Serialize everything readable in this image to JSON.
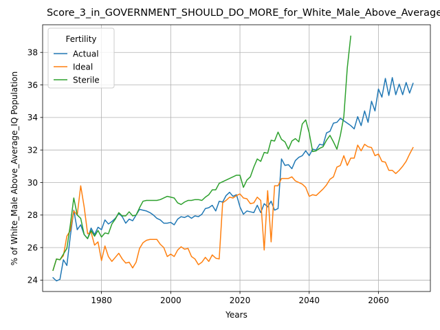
{
  "chart_data": {
    "type": "line",
    "title": "Score_3_in_GOVERNMENT_SHOULD_DO_MORE_for_White_Male_Above_Average_IQ",
    "xlabel": "Years",
    "ylabel": "% of White_Male Above_Average_IQ Population",
    "xlim": [
      1963,
      2075
    ],
    "ylim": [
      23.3,
      39.7
    ],
    "xticks": [
      1980,
      2000,
      2020,
      2040,
      2060
    ],
    "yticks": [
      24,
      26,
      28,
      30,
      32,
      34,
      36,
      38
    ],
    "grid": true,
    "legend": {
      "title": "Fertility",
      "placement": "top-left"
    },
    "series": [
      {
        "name": "Actual",
        "color": "#1f77b4",
        "points": [
          [
            1966,
            24.15
          ],
          [
            1967,
            23.95
          ],
          [
            1968,
            24.05
          ],
          [
            1969,
            25.25
          ],
          [
            1970,
            24.9
          ],
          [
            1971,
            26.7
          ],
          [
            1972,
            28.3
          ],
          [
            1973,
            27.1
          ],
          [
            1974,
            27.4
          ],
          [
            1975,
            26.8
          ],
          [
            1976,
            26.55
          ],
          [
            1977,
            27.2
          ],
          [
            1978,
            26.8
          ],
          [
            1979,
            27.25
          ],
          [
            1980,
            27.1
          ],
          [
            1981,
            27.7
          ],
          [
            1982,
            27.45
          ],
          [
            1983,
            27.6
          ],
          [
            1984,
            27.8
          ],
          [
            1985,
            28.1
          ],
          [
            1986,
            27.9
          ],
          [
            1987,
            27.5
          ],
          [
            1988,
            27.75
          ],
          [
            1989,
            27.65
          ],
          [
            1990,
            28.0
          ],
          [
            1991,
            28.35
          ],
          [
            1992,
            28.3
          ],
          [
            1993,
            28.25
          ],
          [
            1994,
            28.15
          ],
          [
            1995,
            28.0
          ],
          [
            1996,
            27.8
          ],
          [
            1997,
            27.7
          ],
          [
            1998,
            27.5
          ],
          [
            1999,
            27.5
          ],
          [
            2000,
            27.55
          ],
          [
            2001,
            27.4
          ],
          [
            2002,
            27.75
          ],
          [
            2003,
            27.9
          ],
          [
            2004,
            27.85
          ],
          [
            2005,
            27.95
          ],
          [
            2006,
            27.8
          ],
          [
            2007,
            27.95
          ],
          [
            2008,
            27.9
          ],
          [
            2009,
            28.05
          ],
          [
            2010,
            28.4
          ],
          [
            2011,
            28.45
          ],
          [
            2012,
            28.6
          ],
          [
            2013,
            28.25
          ],
          [
            2014,
            28.85
          ],
          [
            2015,
            28.8
          ],
          [
            2016,
            29.2
          ],
          [
            2017,
            29.4
          ],
          [
            2018,
            29.15
          ],
          [
            2019,
            29.25
          ],
          [
            2020,
            28.5
          ],
          [
            2021,
            28.05
          ],
          [
            2022,
            28.25
          ],
          [
            2023,
            28.2
          ],
          [
            2024,
            28.15
          ],
          [
            2025,
            28.6
          ],
          [
            2026,
            28.15
          ],
          [
            2027,
            28.7
          ],
          [
            2028,
            28.5
          ],
          [
            2029,
            28.85
          ],
          [
            2030,
            28.3
          ],
          [
            2031,
            28.4
          ],
          [
            2032,
            31.45
          ],
          [
            2033,
            31.05
          ],
          [
            2034,
            31.1
          ],
          [
            2035,
            30.85
          ],
          [
            2036,
            31.35
          ],
          [
            2037,
            31.55
          ],
          [
            2038,
            31.65
          ],
          [
            2039,
            31.95
          ],
          [
            2040,
            31.65
          ],
          [
            2041,
            32.05
          ],
          [
            2042,
            32.0
          ],
          [
            2043,
            32.35
          ],
          [
            2044,
            32.3
          ],
          [
            2045,
            33.05
          ],
          [
            2046,
            33.15
          ],
          [
            2047,
            33.65
          ],
          [
            2048,
            33.7
          ],
          [
            2049,
            33.95
          ],
          [
            2050,
            33.8
          ],
          [
            2051,
            33.65
          ],
          [
            2052,
            33.5
          ],
          [
            2053,
            33.3
          ],
          [
            2054,
            34.05
          ],
          [
            2055,
            33.5
          ],
          [
            2056,
            34.4
          ],
          [
            2057,
            33.7
          ],
          [
            2058,
            35.0
          ],
          [
            2059,
            34.4
          ],
          [
            2060,
            35.75
          ],
          [
            2061,
            35.25
          ],
          [
            2062,
            36.4
          ],
          [
            2063,
            35.35
          ],
          [
            2064,
            36.45
          ],
          [
            2065,
            35.4
          ],
          [
            2066,
            36.05
          ],
          [
            2067,
            35.4
          ],
          [
            2068,
            36.15
          ],
          [
            2069,
            35.5
          ],
          [
            2070,
            36.1
          ]
        ]
      },
      {
        "name": "Ideal",
        "color": "#ff7f0e",
        "points": [
          [
            1966,
            24.6
          ],
          [
            1967,
            25.3
          ],
          [
            1968,
            25.25
          ],
          [
            1969,
            25.5
          ],
          [
            1970,
            26.7
          ],
          [
            1971,
            27.05
          ],
          [
            1972,
            28.25
          ],
          [
            1973,
            28.0
          ],
          [
            1974,
            29.8
          ],
          [
            1975,
            28.5
          ],
          [
            1976,
            26.85
          ],
          [
            1977,
            26.95
          ],
          [
            1978,
            26.15
          ],
          [
            1979,
            26.35
          ],
          [
            1980,
            25.2
          ],
          [
            1981,
            26.1
          ],
          [
            1982,
            25.45
          ],
          [
            1983,
            25.15
          ],
          [
            1984,
            25.4
          ],
          [
            1985,
            25.65
          ],
          [
            1986,
            25.3
          ],
          [
            1987,
            25.05
          ],
          [
            1988,
            25.1
          ],
          [
            1989,
            24.75
          ],
          [
            1990,
            25.1
          ],
          [
            1991,
            25.95
          ],
          [
            1992,
            26.3
          ],
          [
            1993,
            26.45
          ],
          [
            1994,
            26.5
          ],
          [
            1995,
            26.5
          ],
          [
            1996,
            26.5
          ],
          [
            1997,
            26.2
          ],
          [
            1998,
            26.0
          ],
          [
            1999,
            25.45
          ],
          [
            2000,
            25.6
          ],
          [
            2001,
            25.45
          ],
          [
            2002,
            25.85
          ],
          [
            2003,
            26.05
          ],
          [
            2004,
            25.9
          ],
          [
            2005,
            25.95
          ],
          [
            2006,
            25.45
          ],
          [
            2007,
            25.3
          ],
          [
            2008,
            24.95
          ],
          [
            2009,
            25.1
          ],
          [
            2010,
            25.4
          ],
          [
            2011,
            25.15
          ],
          [
            2012,
            25.55
          ],
          [
            2013,
            25.35
          ],
          [
            2014,
            25.3
          ],
          [
            2015,
            28.75
          ],
          [
            2016,
            28.9
          ],
          [
            2017,
            29.1
          ],
          [
            2018,
            29.05
          ],
          [
            2019,
            29.2
          ],
          [
            2020,
            29.3
          ],
          [
            2021,
            29.05
          ],
          [
            2022,
            29.0
          ],
          [
            2023,
            28.7
          ],
          [
            2024,
            28.75
          ],
          [
            2025,
            29.1
          ],
          [
            2026,
            28.9
          ],
          [
            2027,
            25.85
          ],
          [
            2028,
            29.5
          ],
          [
            2029,
            26.35
          ],
          [
            2030,
            29.8
          ],
          [
            2031,
            29.8
          ],
          [
            2032,
            30.25
          ],
          [
            2033,
            30.25
          ],
          [
            2034,
            30.25
          ],
          [
            2035,
            30.35
          ],
          [
            2036,
            30.1
          ],
          [
            2037,
            30.0
          ],
          [
            2038,
            29.9
          ],
          [
            2039,
            29.7
          ],
          [
            2040,
            29.15
          ],
          [
            2041,
            29.25
          ],
          [
            2042,
            29.2
          ],
          [
            2043,
            29.4
          ],
          [
            2044,
            29.6
          ],
          [
            2045,
            29.85
          ],
          [
            2046,
            30.2
          ],
          [
            2047,
            30.35
          ],
          [
            2048,
            30.95
          ],
          [
            2049,
            31.05
          ],
          [
            2050,
            31.65
          ],
          [
            2051,
            31.05
          ],
          [
            2052,
            31.5
          ],
          [
            2053,
            31.5
          ],
          [
            2054,
            32.3
          ],
          [
            2055,
            31.95
          ],
          [
            2056,
            32.35
          ],
          [
            2057,
            32.2
          ],
          [
            2058,
            32.15
          ],
          [
            2059,
            31.65
          ],
          [
            2060,
            31.75
          ],
          [
            2061,
            31.3
          ],
          [
            2062,
            31.25
          ],
          [
            2063,
            30.75
          ],
          [
            2064,
            30.75
          ],
          [
            2065,
            30.55
          ],
          [
            2066,
            30.75
          ],
          [
            2067,
            31.0
          ],
          [
            2068,
            31.3
          ],
          [
            2069,
            31.75
          ],
          [
            2070,
            32.15
          ]
        ]
      },
      {
        "name": "Sterile",
        "color": "#2ca02c",
        "points": [
          [
            1966,
            24.6
          ],
          [
            1967,
            25.3
          ],
          [
            1968,
            25.25
          ],
          [
            1969,
            25.6
          ],
          [
            1970,
            25.95
          ],
          [
            1971,
            27.4
          ],
          [
            1972,
            29.05
          ],
          [
            1973,
            28.0
          ],
          [
            1974,
            27.8
          ],
          [
            1975,
            26.8
          ],
          [
            1976,
            26.55
          ],
          [
            1977,
            27.05
          ],
          [
            1978,
            26.7
          ],
          [
            1979,
            27.05
          ],
          [
            1980,
            26.65
          ],
          [
            1981,
            26.9
          ],
          [
            1982,
            26.85
          ],
          [
            1983,
            27.45
          ],
          [
            1984,
            27.75
          ],
          [
            1985,
            28.15
          ],
          [
            1986,
            27.95
          ],
          [
            1987,
            27.95
          ],
          [
            1988,
            28.2
          ],
          [
            1989,
            27.95
          ],
          [
            1990,
            28.0
          ],
          [
            1991,
            28.45
          ],
          [
            1992,
            28.85
          ],
          [
            1993,
            28.9
          ],
          [
            1994,
            28.9
          ],
          [
            1995,
            28.9
          ],
          [
            1996,
            28.9
          ],
          [
            1997,
            28.95
          ],
          [
            1998,
            29.05
          ],
          [
            1999,
            29.15
          ],
          [
            2000,
            29.1
          ],
          [
            2001,
            29.05
          ],
          [
            2002,
            28.75
          ],
          [
            2003,
            28.65
          ],
          [
            2004,
            28.8
          ],
          [
            2005,
            28.9
          ],
          [
            2006,
            28.9
          ],
          [
            2007,
            28.95
          ],
          [
            2008,
            28.95
          ],
          [
            2009,
            28.9
          ],
          [
            2010,
            29.1
          ],
          [
            2011,
            29.25
          ],
          [
            2012,
            29.55
          ],
          [
            2013,
            29.55
          ],
          [
            2014,
            29.95
          ],
          [
            2015,
            30.05
          ],
          [
            2016,
            30.15
          ],
          [
            2017,
            30.25
          ],
          [
            2018,
            30.35
          ],
          [
            2019,
            30.45
          ],
          [
            2020,
            30.45
          ],
          [
            2021,
            29.7
          ],
          [
            2022,
            30.15
          ],
          [
            2023,
            30.35
          ],
          [
            2024,
            30.95
          ],
          [
            2025,
            31.45
          ],
          [
            2026,
            31.3
          ],
          [
            2027,
            31.85
          ],
          [
            2028,
            31.8
          ],
          [
            2029,
            32.6
          ],
          [
            2030,
            32.55
          ],
          [
            2031,
            33.1
          ],
          [
            2032,
            32.65
          ],
          [
            2033,
            32.5
          ],
          [
            2034,
            32.05
          ],
          [
            2035,
            32.55
          ],
          [
            2036,
            32.7
          ],
          [
            2037,
            32.5
          ],
          [
            2038,
            33.6
          ],
          [
            2039,
            33.85
          ],
          [
            2040,
            33.05
          ],
          [
            2041,
            31.9
          ],
          [
            2042,
            31.95
          ],
          [
            2043,
            32.1
          ],
          [
            2044,
            32.2
          ],
          [
            2045,
            32.6
          ],
          [
            2046,
            32.9
          ],
          [
            2047,
            32.5
          ],
          [
            2048,
            32.05
          ],
          [
            2049,
            32.9
          ],
          [
            2050,
            34.05
          ],
          [
            2051,
            37.05
          ],
          [
            2052,
            39.0
          ]
        ]
      }
    ]
  }
}
